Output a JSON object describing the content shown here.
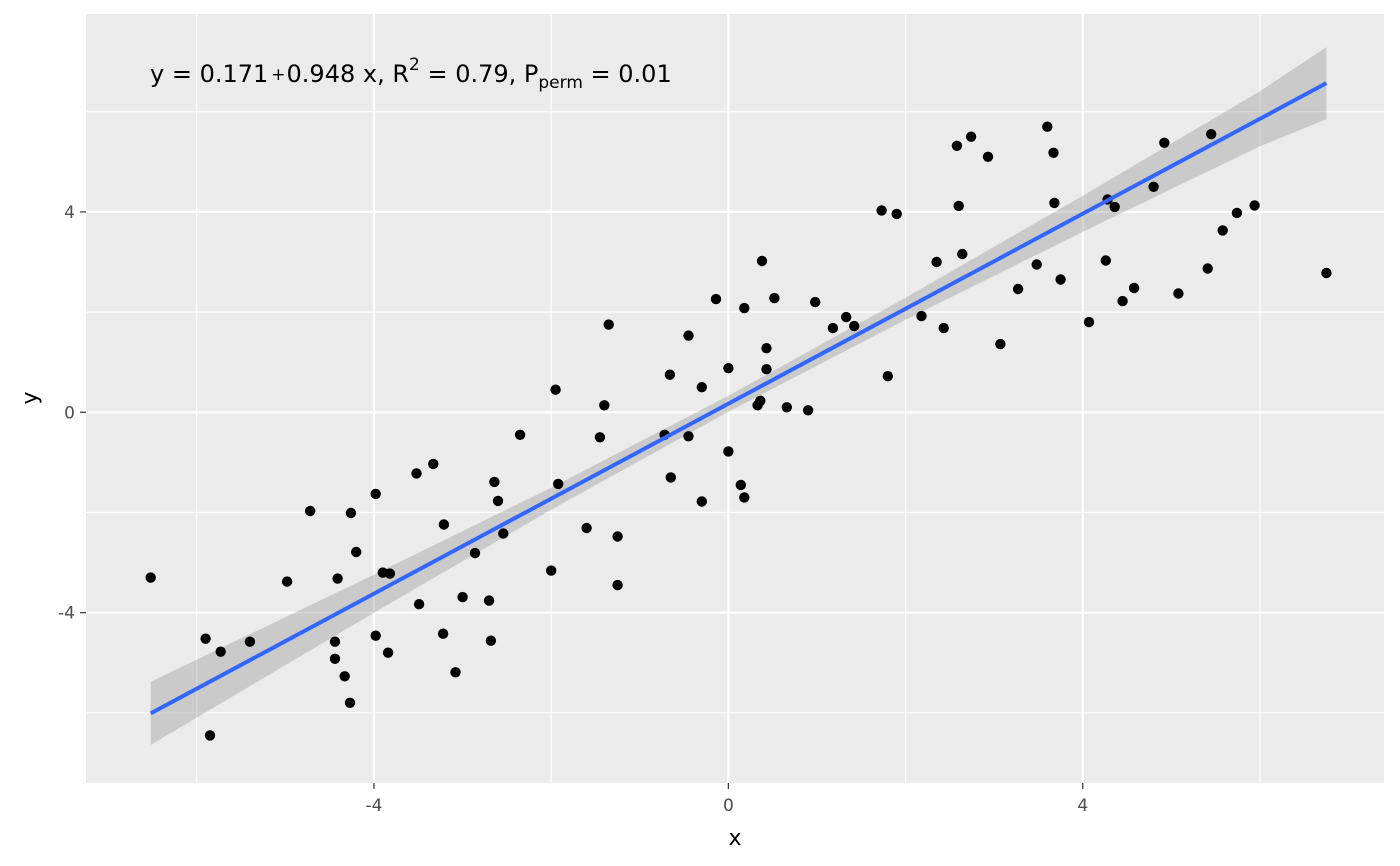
{
  "chart_data": {
    "type": "scatter",
    "xlabel": "x",
    "ylabel": "y",
    "xlim": [
      -7.25,
      7.4
    ],
    "ylim": [
      -7.4,
      7.95
    ],
    "x_ticks": [
      -4,
      0,
      4
    ],
    "y_ticks": [
      -4,
      0,
      4
    ],
    "x_ticks_labels": [
      "-4",
      "0",
      "4"
    ],
    "y_ticks_labels": [
      "-4",
      "0",
      "4"
    ],
    "grid": true,
    "panel_background": "#ebebeb",
    "point_color": "#000000",
    "fit_line": {
      "method": "lm",
      "intercept": 0.171,
      "slope": 0.948,
      "x_range": [
        -6.52,
        6.75
      ],
      "color": "#3366ff",
      "ribbon_color": "#bdbdbd",
      "ribbon_at_x": [
        -6.52,
        -4,
        -2,
        0,
        2,
        4,
        6,
        6.75
      ],
      "ribbon_halfwidth": [
        0.63,
        0.38,
        0.22,
        0.16,
        0.22,
        0.36,
        0.55,
        0.72
      ]
    },
    "annotation": {
      "lhs": "y = 0.171",
      "plus": "+",
      "rhs": "0.948 x, R",
      "r_sup": "2",
      "mid": " = 0.79, P",
      "p_sub": "perm",
      "tail": " = 0.01"
    },
    "points": [
      {
        "x": -6.52,
        "y": -3.3
      },
      {
        "x": -5.9,
        "y": -4.52
      },
      {
        "x": -5.85,
        "y": -6.45
      },
      {
        "x": -5.73,
        "y": -4.78
      },
      {
        "x": -5.4,
        "y": -4.58
      },
      {
        "x": -4.98,
        "y": -3.38
      },
      {
        "x": -4.72,
        "y": -1.97
      },
      {
        "x": -4.44,
        "y": -4.58
      },
      {
        "x": -4.44,
        "y": -4.92
      },
      {
        "x": -4.41,
        "y": -3.32
      },
      {
        "x": -4.33,
        "y": -5.27
      },
      {
        "x": -4.27,
        "y": -5.8
      },
      {
        "x": -4.26,
        "y": -2.01
      },
      {
        "x": -4.2,
        "y": -2.79
      },
      {
        "x": -3.98,
        "y": -1.63
      },
      {
        "x": -3.98,
        "y": -4.46
      },
      {
        "x": -3.9,
        "y": -3.2
      },
      {
        "x": -3.84,
        "y": -4.8
      },
      {
        "x": -3.82,
        "y": -3.22
      },
      {
        "x": -3.52,
        "y": -1.22
      },
      {
        "x": -3.49,
        "y": -3.83
      },
      {
        "x": -3.33,
        "y": -1.03
      },
      {
        "x": -3.21,
        "y": -2.24
      },
      {
        "x": -3.22,
        "y": -4.42
      },
      {
        "x": -3.08,
        "y": -5.19
      },
      {
        "x": -3.0,
        "y": -3.69
      },
      {
        "x": -2.86,
        "y": -2.81
      },
      {
        "x": -2.7,
        "y": -3.76
      },
      {
        "x": -2.68,
        "y": -4.56
      },
      {
        "x": -2.64,
        "y": -1.39
      },
      {
        "x": -2.6,
        "y": -1.77
      },
      {
        "x": -2.54,
        "y": -2.42
      },
      {
        "x": -2.35,
        "y": -0.45
      },
      {
        "x": -2.0,
        "y": -3.16
      },
      {
        "x": -1.95,
        "y": 0.45
      },
      {
        "x": -1.92,
        "y": -1.43
      },
      {
        "x": -1.6,
        "y": -2.31
      },
      {
        "x": -1.45,
        "y": -0.5
      },
      {
        "x": -1.4,
        "y": 0.14
      },
      {
        "x": -1.35,
        "y": 1.75
      },
      {
        "x": -1.25,
        "y": -2.48
      },
      {
        "x": -1.25,
        "y": -3.45
      },
      {
        "x": -0.72,
        "y": -0.45
      },
      {
        "x": -0.66,
        "y": 0.75
      },
      {
        "x": -0.65,
        "y": -1.3
      },
      {
        "x": -0.45,
        "y": 1.53
      },
      {
        "x": -0.45,
        "y": -0.48
      },
      {
        "x": -0.3,
        "y": 0.5
      },
      {
        "x": -0.3,
        "y": -1.78
      },
      {
        "x": -0.14,
        "y": 2.26
      },
      {
        "x": 0.0,
        "y": 0.88
      },
      {
        "x": 0.0,
        "y": -0.78
      },
      {
        "x": 0.14,
        "y": -1.45
      },
      {
        "x": 0.18,
        "y": -1.7
      },
      {
        "x": 0.18,
        "y": 2.08
      },
      {
        "x": 0.33,
        "y": 0.14
      },
      {
        "x": 0.36,
        "y": 0.23
      },
      {
        "x": 0.38,
        "y": 3.02
      },
      {
        "x": 0.43,
        "y": 1.28
      },
      {
        "x": 0.43,
        "y": 0.86
      },
      {
        "x": 0.52,
        "y": 2.28
      },
      {
        "x": 0.66,
        "y": 0.1
      },
      {
        "x": 0.9,
        "y": 0.04
      },
      {
        "x": 0.98,
        "y": 2.2
      },
      {
        "x": 1.18,
        "y": 1.68
      },
      {
        "x": 1.33,
        "y": 1.9
      },
      {
        "x": 1.42,
        "y": 1.72
      },
      {
        "x": 1.73,
        "y": 4.03
      },
      {
        "x": 1.8,
        "y": 0.72
      },
      {
        "x": 1.9,
        "y": 3.96
      },
      {
        "x": 2.18,
        "y": 1.92
      },
      {
        "x": 2.35,
        "y": 3.0
      },
      {
        "x": 2.43,
        "y": 1.68
      },
      {
        "x": 2.58,
        "y": 5.32
      },
      {
        "x": 2.6,
        "y": 4.12
      },
      {
        "x": 2.64,
        "y": 3.16
      },
      {
        "x": 2.74,
        "y": 5.5
      },
      {
        "x": 2.93,
        "y": 5.1
      },
      {
        "x": 3.07,
        "y": 1.36
      },
      {
        "x": 3.27,
        "y": 2.46
      },
      {
        "x": 3.48,
        "y": 2.95
      },
      {
        "x": 3.6,
        "y": 5.7
      },
      {
        "x": 3.67,
        "y": 5.18
      },
      {
        "x": 3.68,
        "y": 4.18
      },
      {
        "x": 3.75,
        "y": 2.65
      },
      {
        "x": 4.07,
        "y": 1.8
      },
      {
        "x": 4.26,
        "y": 3.03
      },
      {
        "x": 4.28,
        "y": 4.25
      },
      {
        "x": 4.36,
        "y": 4.1
      },
      {
        "x": 4.45,
        "y": 2.22
      },
      {
        "x": 4.58,
        "y": 2.48
      },
      {
        "x": 4.8,
        "y": 4.5
      },
      {
        "x": 4.92,
        "y": 5.38
      },
      {
        "x": 5.08,
        "y": 2.37
      },
      {
        "x": 5.41,
        "y": 2.87
      },
      {
        "x": 5.45,
        "y": 5.55
      },
      {
        "x": 5.58,
        "y": 3.63
      },
      {
        "x": 5.74,
        "y": 3.98
      },
      {
        "x": 5.94,
        "y": 4.13
      },
      {
        "x": 6.75,
        "y": 2.78
      }
    ]
  }
}
